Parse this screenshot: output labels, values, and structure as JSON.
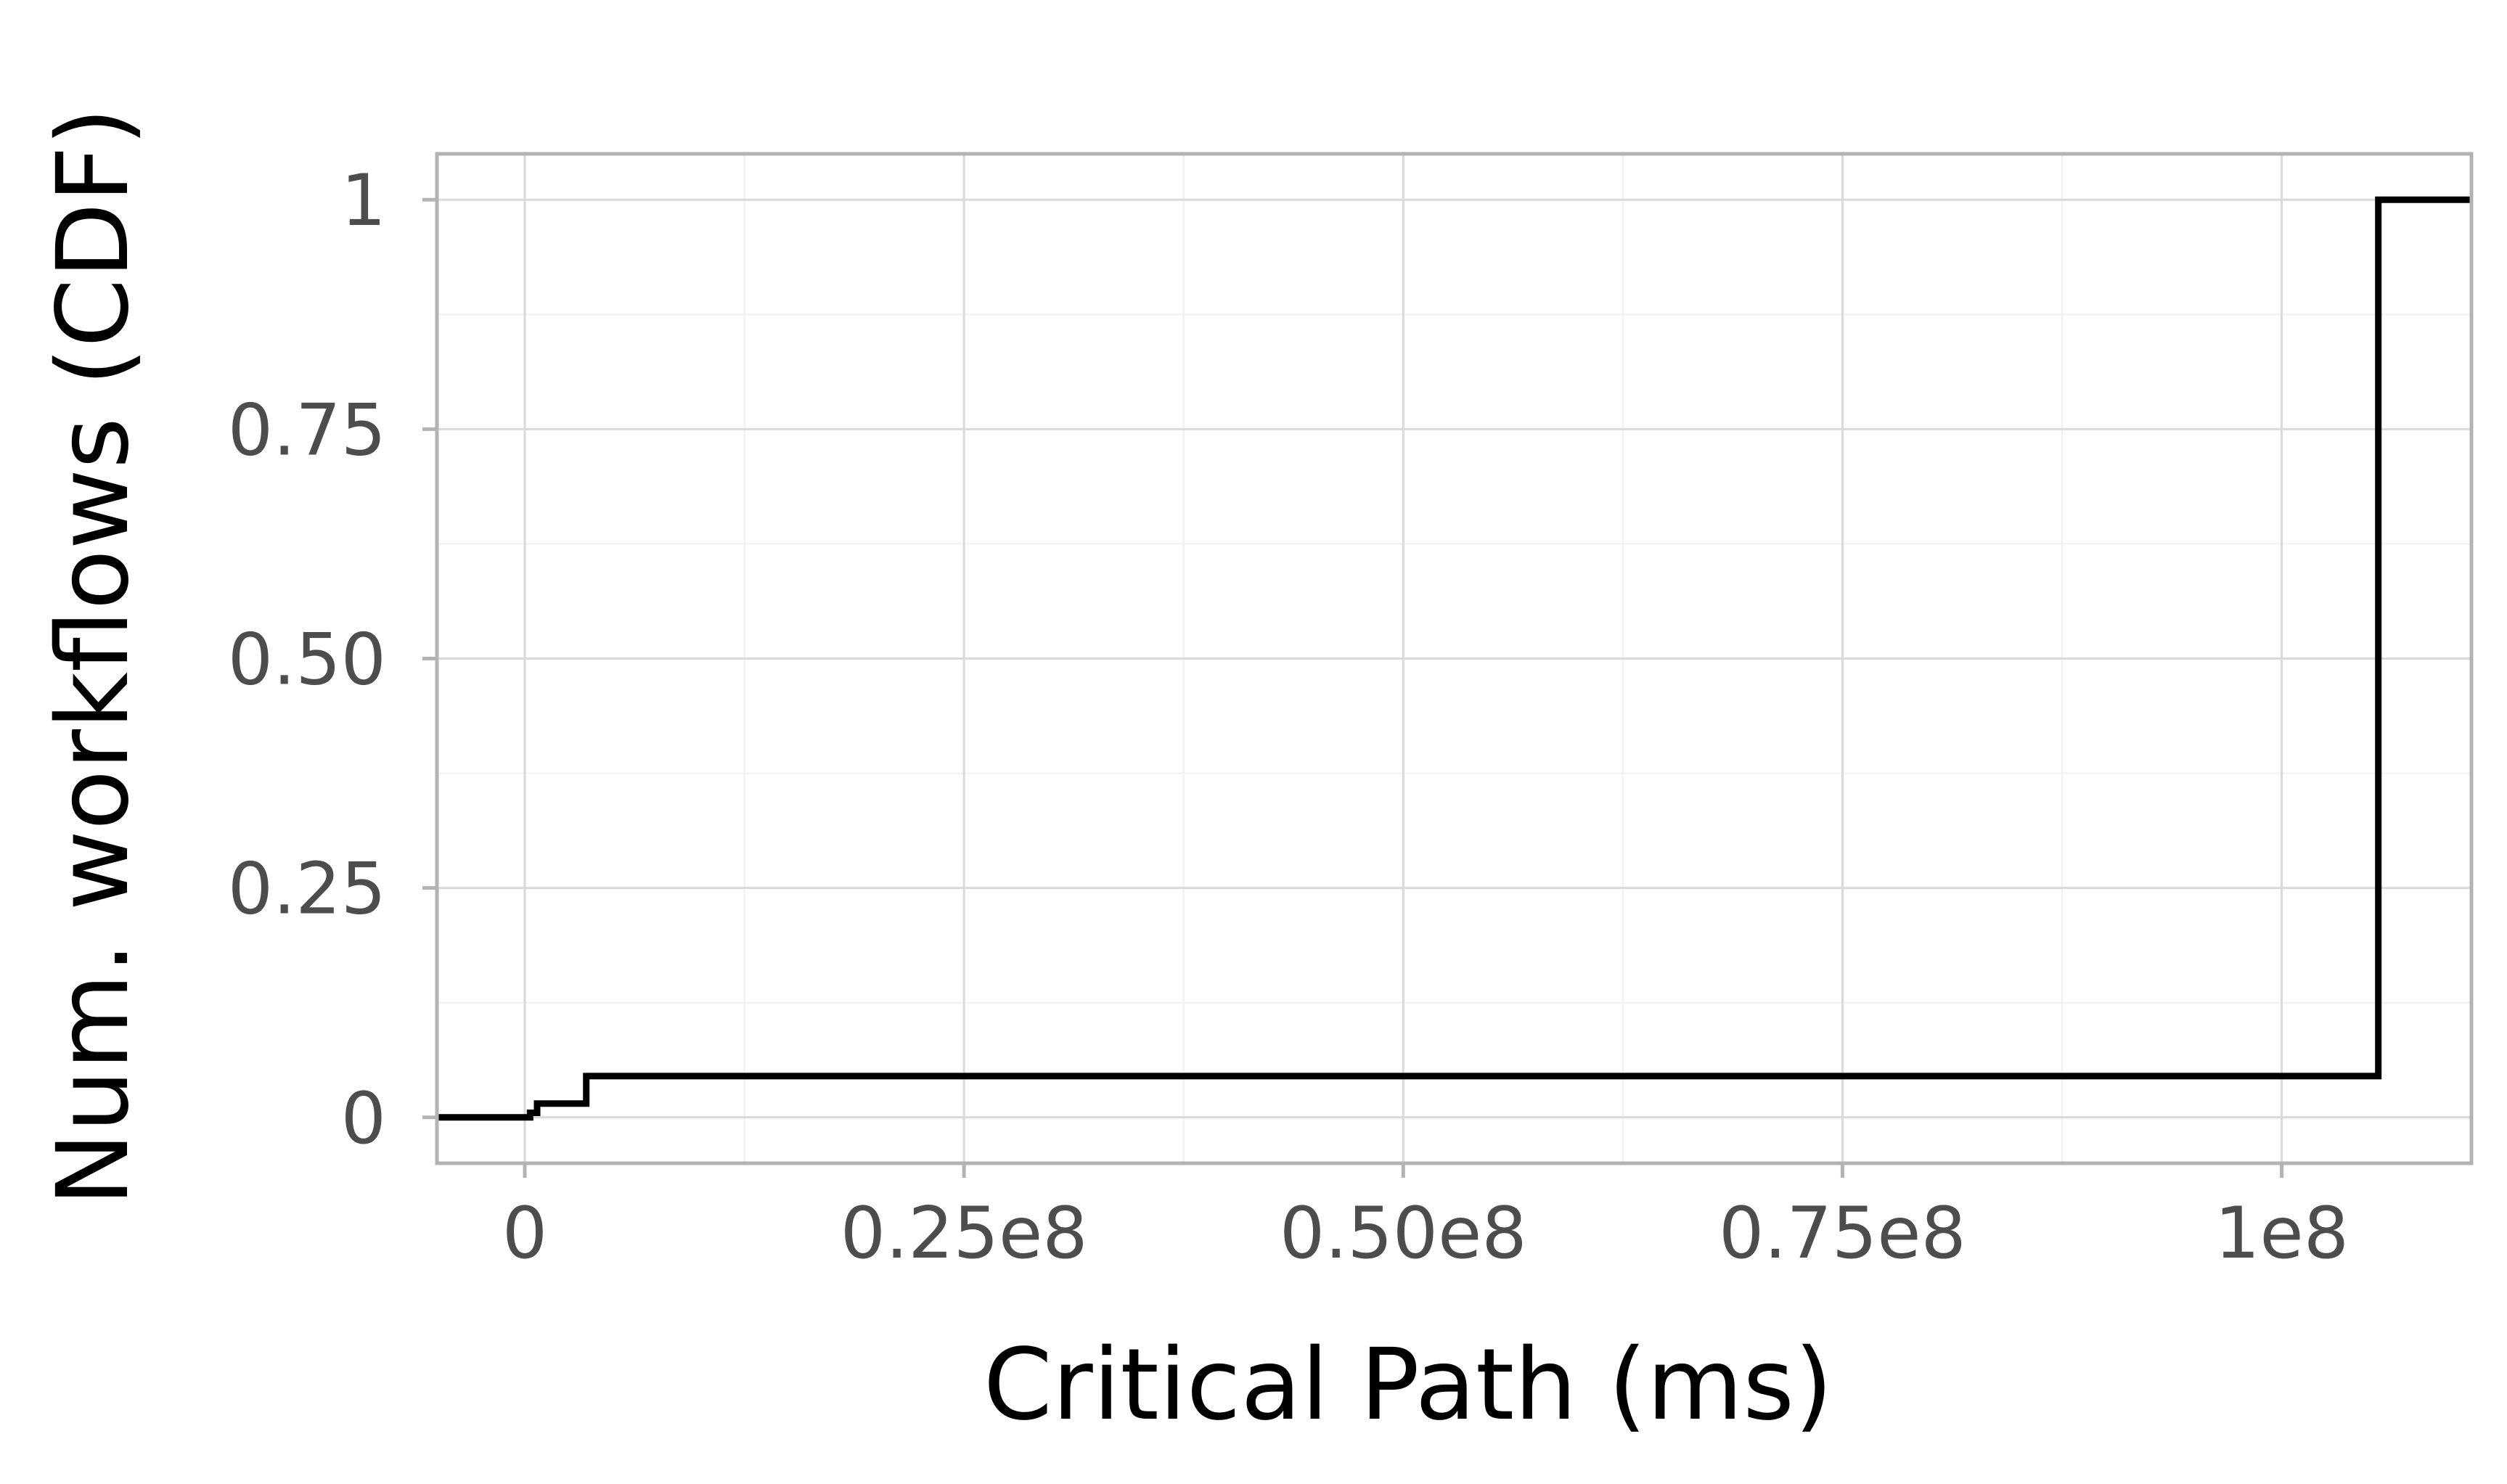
{
  "chart_data": {
    "type": "line",
    "subtype": "step-cdf",
    "title": "",
    "xlabel": "Critical Path (ms)",
    "ylabel": "Num. workflows (CDF)",
    "xlim": [
      -5000000,
      110800000
    ],
    "ylim": [
      -0.05,
      1.05
    ],
    "x_ticks": [
      {
        "value": 0,
        "label": "0"
      },
      {
        "value": 25000000,
        "label": "0.25e8"
      },
      {
        "value": 50000000,
        "label": "0.50e8"
      },
      {
        "value": 75000000,
        "label": "0.75e8"
      },
      {
        "value": 100000000,
        "label": "1e8"
      }
    ],
    "y_ticks": [
      {
        "value": 0,
        "label": "0"
      },
      {
        "value": 0.25,
        "label": "0.25"
      },
      {
        "value": 0.5,
        "label": "0.50"
      },
      {
        "value": 0.75,
        "label": "0.75"
      },
      {
        "value": 1,
        "label": "1"
      }
    ],
    "grid": true,
    "colors": {
      "line": "#000000",
      "panel_border": "#b3b3b3",
      "grid_major": "#d9d9d9",
      "grid_minor": "#f0f0f0",
      "tick_label": "#4d4d4d"
    },
    "series": [
      {
        "x": [
          -5000000,
          300000,
          300000,
          700000,
          700000,
          3500000,
          3500000,
          105500000,
          105500000,
          110800000
        ],
        "y": [
          0,
          0,
          0.005,
          0.005,
          0.015,
          0.015,
          0.045,
          0.045,
          1,
          1
        ]
      }
    ]
  }
}
